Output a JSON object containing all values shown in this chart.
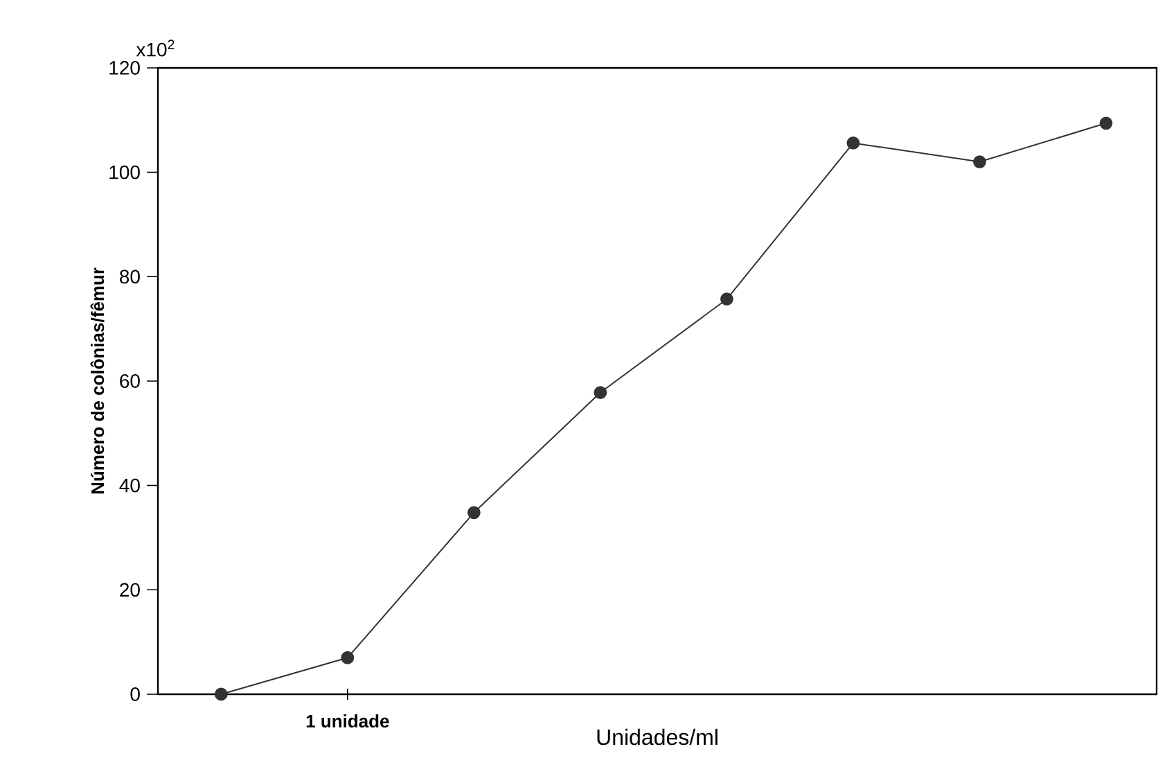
{
  "chart_data": {
    "type": "line",
    "xlabel": "Unidades/ml",
    "ylabel": "Número de colônias/fêmur",
    "categories": [
      null,
      "1 unidade",
      null,
      null,
      null,
      null,
      null,
      null
    ],
    "series": [
      {
        "color": "#333333",
        "values": [
          0,
          7,
          34.8,
          57.8,
          75.7,
          105.6,
          102,
          109.4
        ]
      }
    ],
    "ylim": [
      0,
      120
    ],
    "yticks": [
      0,
      20,
      40,
      60,
      80,
      100,
      120
    ],
    "annotations": [
      "x10$^{2}$"
    ],
    "marker": "circle",
    "line_style": "solid",
    "grid": false
  }
}
